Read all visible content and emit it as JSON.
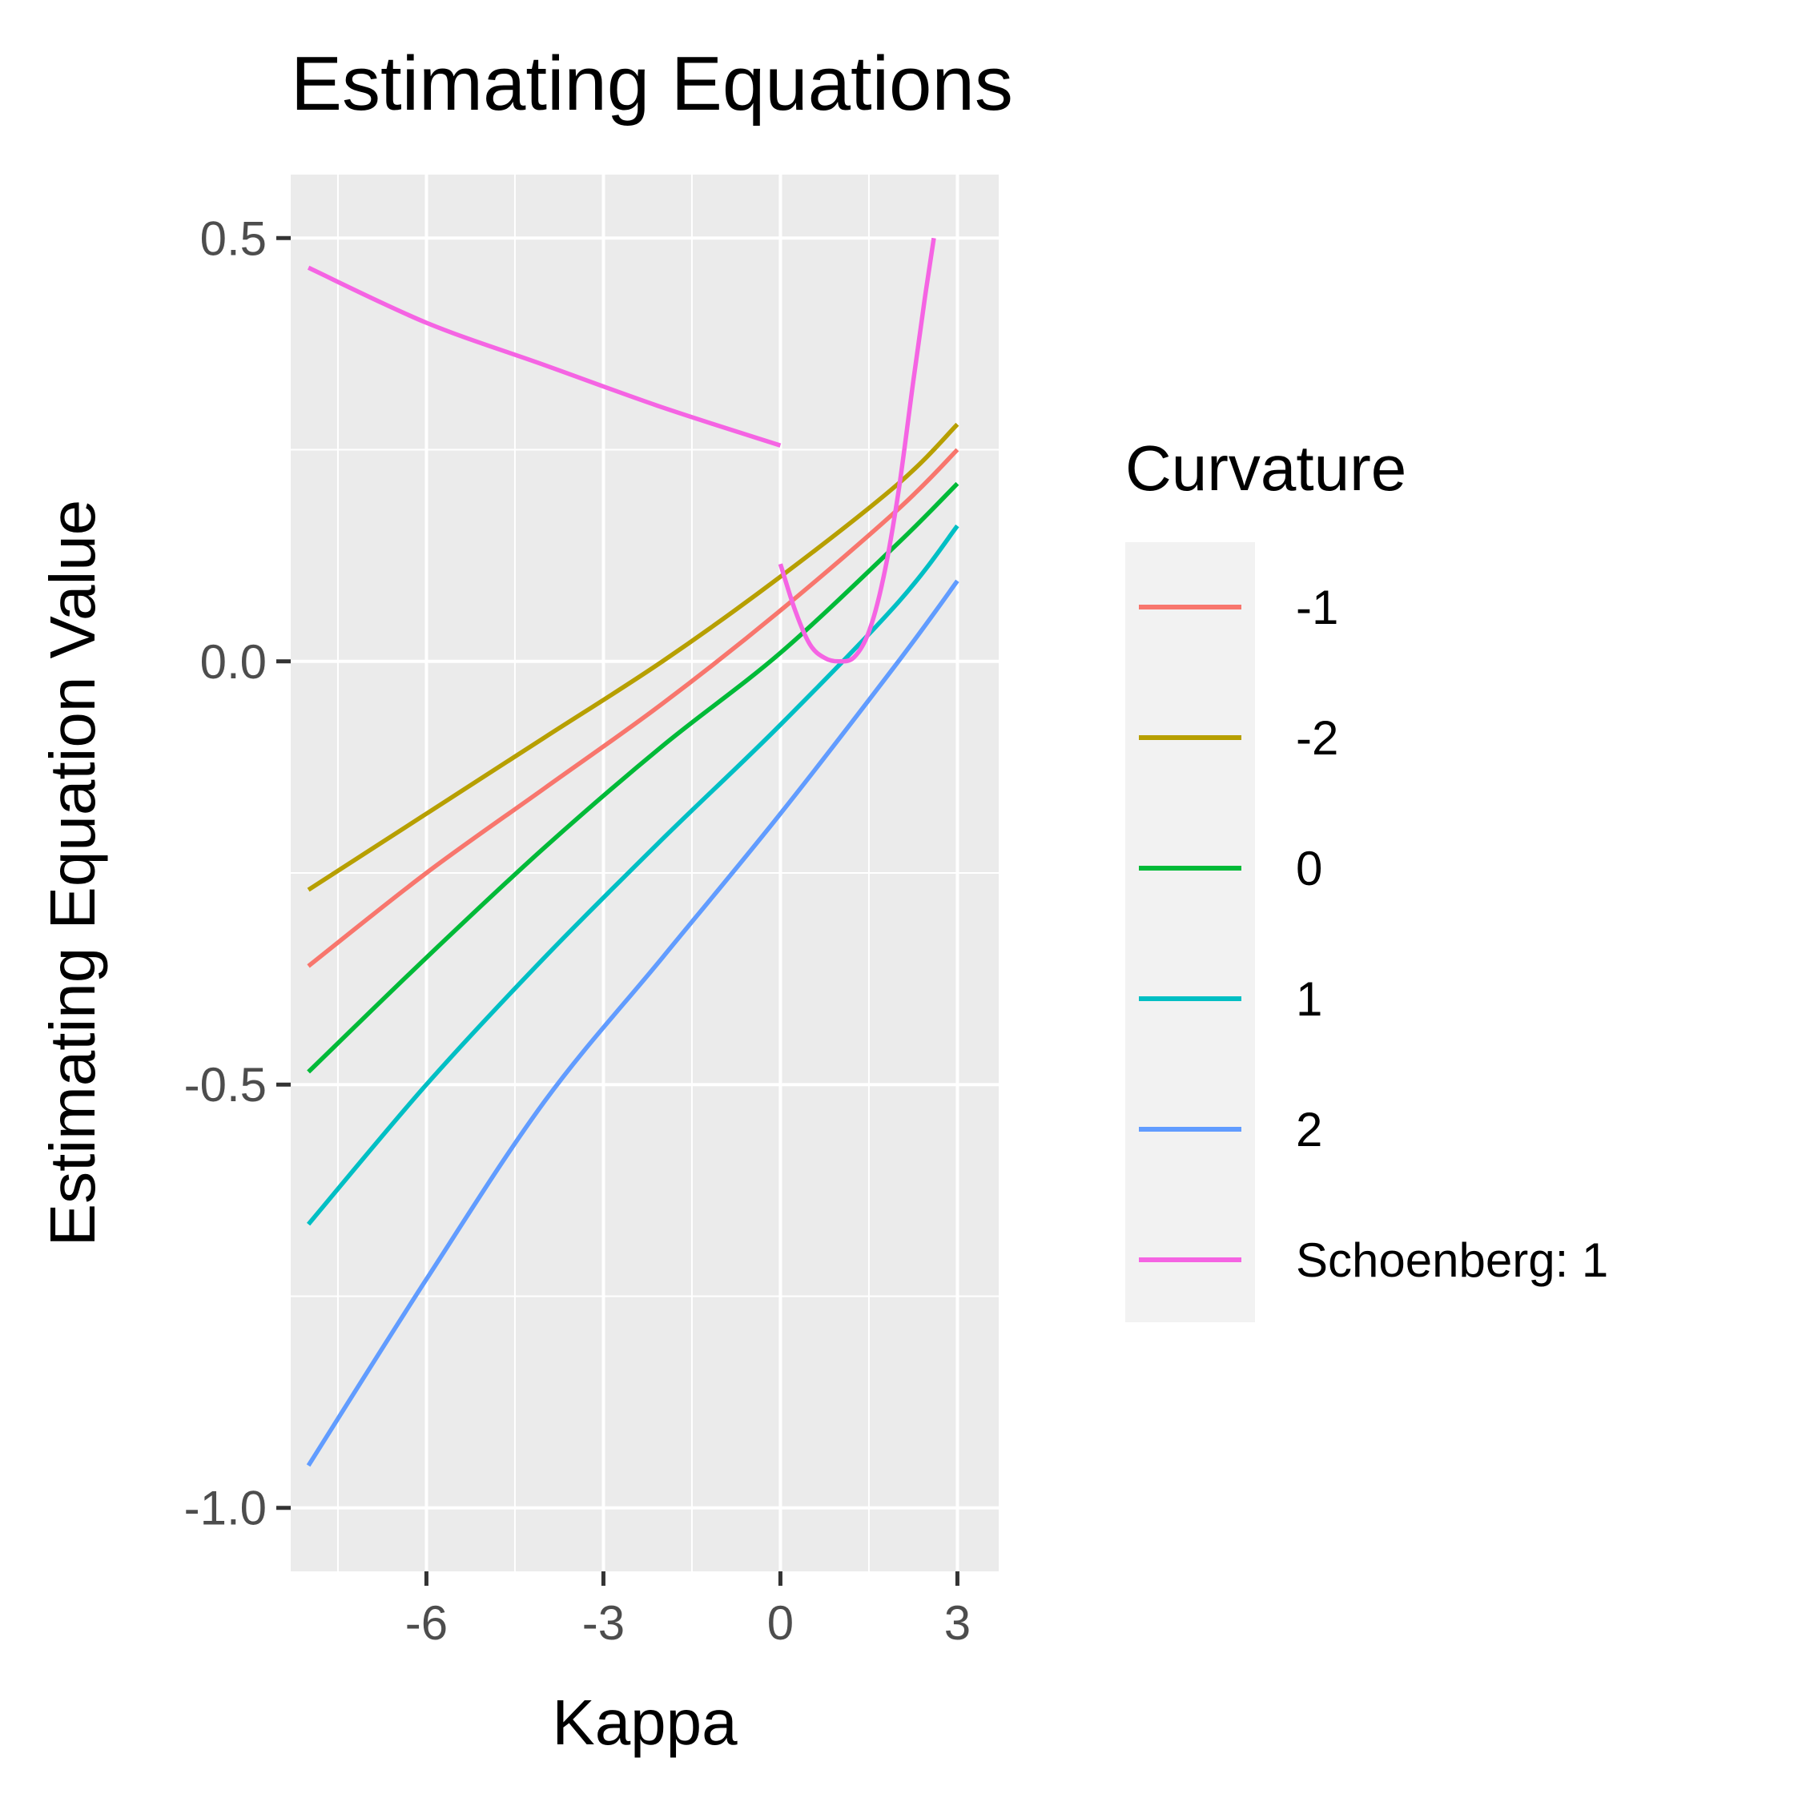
{
  "chart_data": {
    "type": "line",
    "title": "Estimating Equations",
    "xlabel": "Kappa",
    "ylabel": "Estimating Equation Value",
    "xlim": [
      -8.3,
      3.7
    ],
    "ylim": [
      -1.075,
      0.575
    ],
    "x_ticks": [
      -6,
      -3,
      0,
      3
    ],
    "x_tick_labels": [
      "-6",
      "-3",
      "0",
      "3"
    ],
    "y_ticks": [
      0.5,
      0.0,
      -0.5,
      -1.0
    ],
    "y_tick_labels": [
      "0.5",
      "0.0",
      "-0.5",
      "-1.0"
    ],
    "grid": true,
    "legend": {
      "title": "Curvature",
      "position": "right"
    },
    "series": [
      {
        "name": "-1",
        "color": "#F8766D",
        "x": [
          -8,
          -6,
          -4,
          -2,
          0,
          2,
          3
        ],
        "y": [
          -0.36,
          -0.25,
          -0.15,
          -0.05,
          0.06,
          0.18,
          0.25
        ]
      },
      {
        "name": "-2",
        "color": "#B79F00",
        "x": [
          -8,
          -6,
          -4,
          -2,
          0,
          2,
          3
        ],
        "y": [
          -0.27,
          -0.18,
          -0.09,
          0.0,
          0.1,
          0.21,
          0.28
        ]
      },
      {
        "name": "0",
        "color": "#00BA38",
        "x": [
          -8,
          -6,
          -4,
          -2,
          0,
          2,
          3
        ],
        "y": [
          -0.485,
          -0.35,
          -0.22,
          -0.1,
          0.01,
          0.14,
          0.21
        ]
      },
      {
        "name": "1",
        "color": "#00BFC4",
        "x": [
          -8,
          -6,
          -4,
          -2,
          0,
          2,
          3
        ],
        "y": [
          -0.665,
          -0.5,
          -0.35,
          -0.21,
          -0.075,
          0.07,
          0.16
        ]
      },
      {
        "name": "2",
        "color": "#619CFF",
        "x": [
          -8,
          -6,
          -4,
          -2,
          0,
          2,
          3
        ],
        "y": [
          -0.95,
          -0.73,
          -0.52,
          -0.35,
          -0.18,
          0.0,
          0.095
        ]
      },
      {
        "name": "Schoenberg: 1",
        "color": "#F564E3",
        "segments": [
          {
            "x": [
              -8,
              -6,
              -4,
              -2,
              0
            ],
            "y": [
              0.465,
              0.4,
              0.35,
              0.3,
              0.255
            ]
          },
          {
            "x": [
              0,
              0.25,
              0.5,
              0.75,
              1.0,
              1.25,
              1.5,
              1.75,
              2.0,
              2.25,
              2.45,
              2.6
            ],
            "y": [
              0.115,
              0.06,
              0.02,
              0.004,
              0.0,
              0.005,
              0.035,
              0.1,
              0.2,
              0.33,
              0.43,
              0.5
            ]
          }
        ]
      }
    ]
  }
}
